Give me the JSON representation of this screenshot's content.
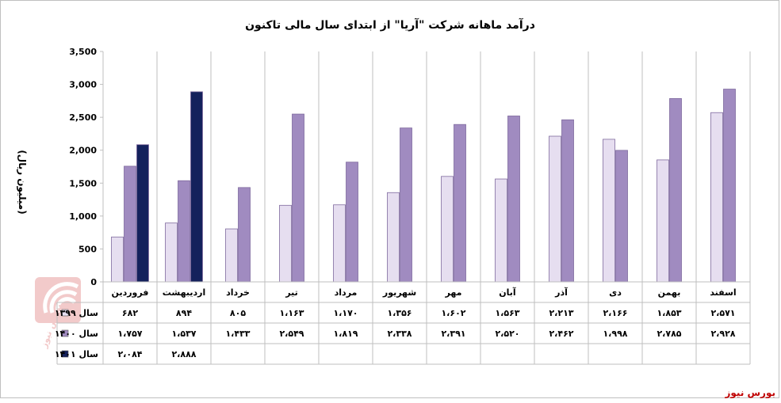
{
  "chart_data": {
    "type": "bar",
    "title": "درآمد ماهانه شرکت \"آریا\" از ابتدای سال مالی تاکنون",
    "ylabel": "(میلیون ریال)",
    "ylim": [
      0,
      3500
    ],
    "yticks": [
      0,
      500,
      1000,
      1500,
      2000,
      2500,
      3000,
      3500
    ],
    "ytick_labels": [
      "0",
      "500",
      "1,000",
      "1,500",
      "2,000",
      "2,500",
      "3,000",
      "3,500"
    ],
    "categories": [
      "فروردین",
      "اردیبهشت",
      "خرداد",
      "تیر",
      "مرداد",
      "شهریور",
      "مهر",
      "آبان",
      "آذر",
      "دی",
      "بهمن",
      "اسفند"
    ],
    "series": [
      {
        "name": "سال ۱۳۹۹",
        "color": "#e6def0",
        "values": [
          682,
          894,
          805,
          1163,
          1170,
          1356,
          1602,
          1563,
          2213,
          2166,
          1853,
          2571
        ],
        "labels": [
          "۶۸۲",
          "۸۹۴",
          "۸۰۵",
          "۱،۱۶۳",
          "۱،۱۷۰",
          "۱،۳۵۶",
          "۱،۶۰۲",
          "۱،۵۶۳",
          "۲،۲۱۳",
          "۲،۱۶۶",
          "۱،۸۵۳",
          "۲،۵۷۱"
        ]
      },
      {
        "name": "سال ۱۴۰۰",
        "color": "#a08bc0",
        "values": [
          1757,
          1537,
          1433,
          2549,
          1819,
          2338,
          2391,
          2520,
          2462,
          1998,
          2785,
          2928
        ],
        "labels": [
          "۱،۷۵۷",
          "۱،۵۳۷",
          "۱،۴۳۳",
          "۲،۵۴۹",
          "۱،۸۱۹",
          "۲،۳۳۸",
          "۲،۳۹۱",
          "۲،۵۲۰",
          "۲،۴۶۲",
          "۱،۹۹۸",
          "۲،۷۸۵",
          "۲،۹۲۸"
        ]
      },
      {
        "name": "سال ۱۴۰۱",
        "color": "#14215c",
        "values": [
          2084,
          2888,
          null,
          null,
          null,
          null,
          null,
          null,
          null,
          null,
          null,
          null
        ],
        "labels": [
          "۲،۰۸۴",
          "۲،۸۸۸",
          "",
          "",
          "",
          "",
          "",
          "",
          "",
          "",
          "",
          ""
        ]
      }
    ],
    "grid": false,
    "legend": "data-table-left"
  },
  "source_label": "بورس نیوز",
  "watermark_text": "بورس نیوز"
}
